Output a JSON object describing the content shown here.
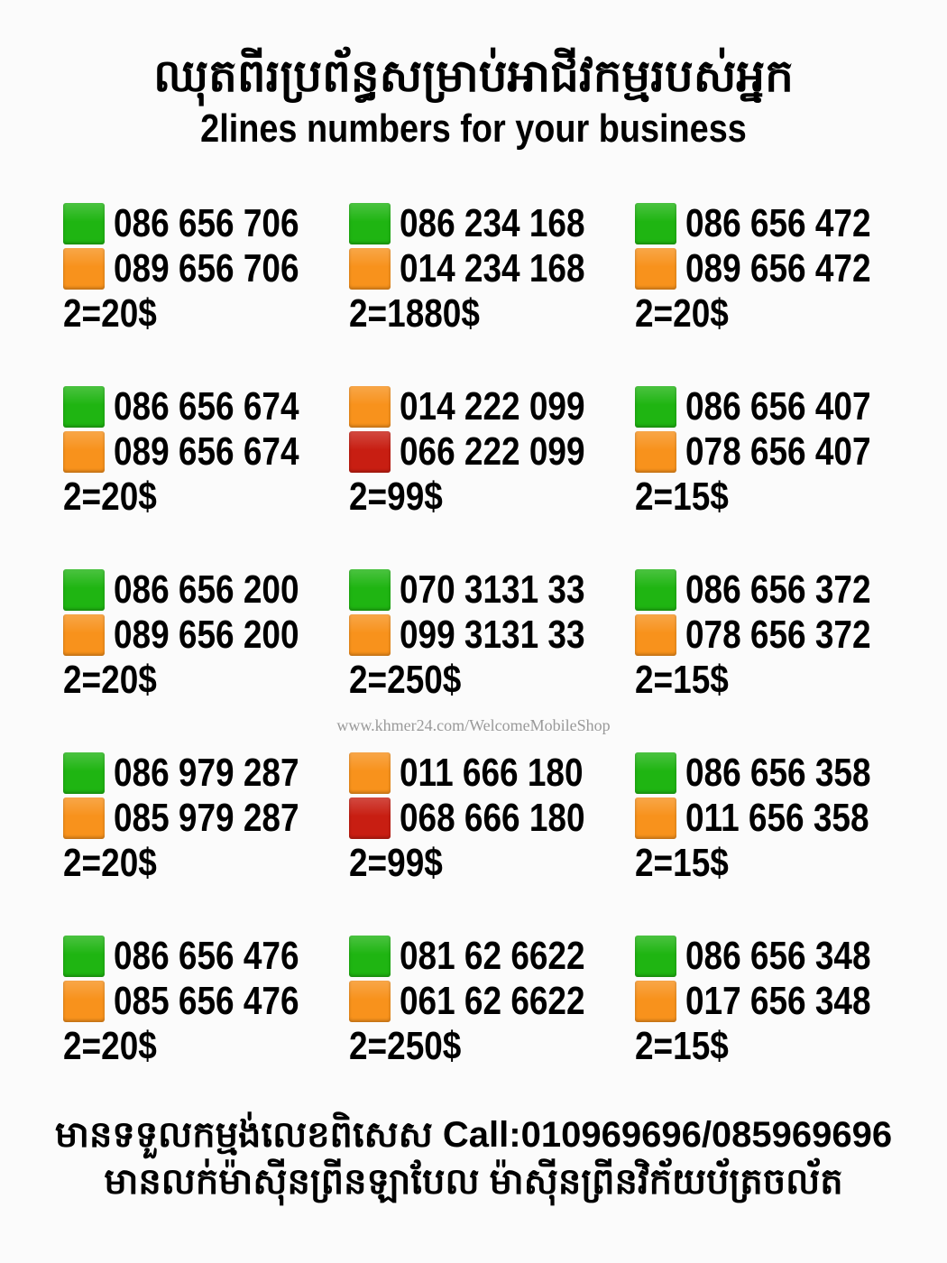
{
  "header": {
    "title_km": "ឈុតពីរប្រព័ន្ធសម្រាប់អាជីវកម្មរបស់អ្នក",
    "title_en": "2lines numbers for your business"
  },
  "colors": {
    "green": "#1fb512",
    "orange": "#f8921c",
    "red": "#c81e12"
  },
  "blocks": [
    {
      "lines": [
        {
          "color": "green",
          "number": "086 656 706"
        },
        {
          "color": "orange",
          "number": "089 656 706"
        }
      ],
      "price": "2=20$"
    },
    {
      "lines": [
        {
          "color": "green",
          "number": "086 234 168"
        },
        {
          "color": "orange",
          "number": "014 234 168"
        }
      ],
      "price": "2=1880$"
    },
    {
      "lines": [
        {
          "color": "green",
          "number": "086 656 472"
        },
        {
          "color": "orange",
          "number": "089 656 472"
        }
      ],
      "price": "2=20$"
    },
    {
      "lines": [
        {
          "color": "green",
          "number": "086 656 674"
        },
        {
          "color": "orange",
          "number": "089 656 674"
        }
      ],
      "price": "2=20$"
    },
    {
      "lines": [
        {
          "color": "orange",
          "number": "014 222 099"
        },
        {
          "color": "red",
          "number": "066 222 099"
        }
      ],
      "price": "2=99$"
    },
    {
      "lines": [
        {
          "color": "green",
          "number": "086 656 407"
        },
        {
          "color": "orange",
          "number": "078 656 407"
        }
      ],
      "price": "2=15$"
    },
    {
      "lines": [
        {
          "color": "green",
          "number": "086 656 200"
        },
        {
          "color": "orange",
          "number": "089 656 200"
        }
      ],
      "price": "2=20$"
    },
    {
      "lines": [
        {
          "color": "green",
          "number": "070 3131 33"
        },
        {
          "color": "orange",
          "number": "099 3131 33"
        }
      ],
      "price": "2=250$"
    },
    {
      "lines": [
        {
          "color": "green",
          "number": "086 656 372"
        },
        {
          "color": "orange",
          "number": "078 656 372"
        }
      ],
      "price": "2=15$"
    },
    {
      "lines": [
        {
          "color": "green",
          "number": "086 979 287"
        },
        {
          "color": "orange",
          "number": "085 979 287"
        }
      ],
      "price": "2=20$"
    },
    {
      "lines": [
        {
          "color": "orange",
          "number": "011 666 180"
        },
        {
          "color": "red",
          "number": "068 666 180"
        }
      ],
      "price": "2=99$"
    },
    {
      "lines": [
        {
          "color": "green",
          "number": "086 656 358"
        },
        {
          "color": "orange",
          "number": "011 656 358"
        }
      ],
      "price": "2=15$"
    },
    {
      "lines": [
        {
          "color": "green",
          "number": "086 656 476"
        },
        {
          "color": "orange",
          "number": "085 656 476"
        }
      ],
      "price": "2=20$"
    },
    {
      "lines": [
        {
          "color": "green",
          "number": "081 62 6622"
        },
        {
          "color": "orange",
          "number": "061 62 6622"
        }
      ],
      "price": "2=250$"
    },
    {
      "lines": [
        {
          "color": "green",
          "number": "086 656 348"
        },
        {
          "color": "orange",
          "number": "017 656 348"
        }
      ],
      "price": "2=15$"
    }
  ],
  "watermark": "www.khmer24.com/WelcomeMobileShop",
  "footer": {
    "line1": "មានទទួលកម្មង់លេខពិសេស Call:010969696/085969696",
    "line2": "មានលក់ម៉ាស៊ីនព្រីនឡាបែល ម៉ាស៊ីនព្រីនវិក័យប័ត្រចល័ត"
  }
}
